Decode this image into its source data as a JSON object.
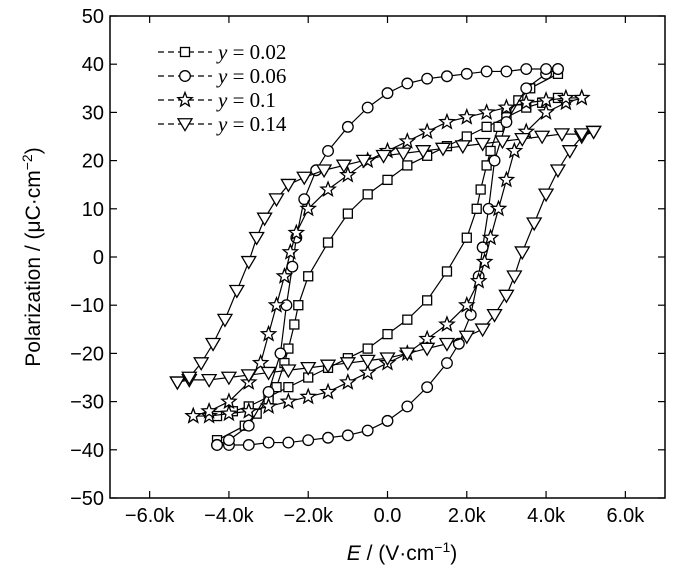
{
  "chart_data": {
    "type": "line",
    "title": "",
    "xlabel": "E / (V·cm⁻¹)",
    "ylabel": "Polarization / (μC·cm⁻²)",
    "xlabel_parts": {
      "var": "E",
      "rest": " / (V·cm",
      "sup": "−1",
      "close": ")"
    },
    "ylabel_parts": {
      "main": "Polarization / (μC·cm",
      "sup": "−2",
      "close": ")"
    },
    "xlim": [
      -7000,
      7000
    ],
    "ylim": [
      -50,
      50
    ],
    "xticks": [
      -6000,
      -4000,
      -2000,
      0,
      2000,
      4000,
      6000
    ],
    "xtick_labels": [
      "−6.0k",
      "−4.0k",
      "−2.0k",
      "0.0",
      "2.0k",
      "4.0k",
      "6.0k"
    ],
    "yticks": [
      -50,
      -40,
      -30,
      -20,
      -10,
      0,
      10,
      20,
      30,
      40,
      50
    ],
    "ytick_labels": [
      "−50",
      "−40",
      "−30",
      "−20",
      "−10",
      "0",
      "10",
      "20",
      "30",
      "40",
      "50"
    ],
    "grid": false,
    "legend_position": "top-left",
    "series": [
      {
        "name": "y = 0.02",
        "legend_var": "y",
        "legend_value": " = 0.02",
        "marker": "square",
        "upper_x": [
          4300,
          3600,
          3300,
          3000,
          2800,
          2600,
          2500,
          2350,
          2250,
          2000,
          1500,
          1000,
          500,
          0,
          -500,
          -1000,
          -1500,
          -2000,
          -2500,
          -3000,
          -3500,
          -3900,
          -4300
        ],
        "upper_y": [
          38,
          35,
          32.5,
          29.5,
          27,
          22,
          19,
          14,
          10,
          4,
          -3,
          -9,
          -13,
          -16,
          -19,
          -21,
          -23,
          -25,
          -27,
          -29,
          -31,
          -32,
          -33
        ],
        "lower_x": [
          -4300,
          -3600,
          -3300,
          -3000,
          -2800,
          -2600,
          -2500,
          -2350,
          -2250,
          -2000,
          -1500,
          -1000,
          -500,
          0,
          500,
          1000,
          1500,
          2000,
          2500,
          3000,
          3500,
          3900,
          4300
        ],
        "lower_y": [
          -38,
          -35,
          -32.5,
          -29.5,
          -27,
          -22,
          -19,
          -14,
          -10,
          -4,
          3,
          9,
          13,
          16,
          19,
          21,
          23,
          25,
          27,
          29,
          31,
          32,
          33
        ],
        "marker_interval": 1
      },
      {
        "name": "y = 0.06",
        "legend_var": "y",
        "legend_value": " = 0.06",
        "marker": "circle",
        "upper_x": [
          4300,
          4000,
          3500,
          3000,
          2700,
          2550,
          2400,
          2300,
          2100,
          1800,
          1500,
          1000,
          500,
          0,
          -500,
          -1000,
          -1500,
          -2000,
          -2500,
          -3000,
          -3500,
          -4000,
          -4300
        ],
        "upper_y": [
          39,
          38,
          35,
          28,
          20,
          10,
          2,
          -4,
          -12,
          -18,
          -22,
          -27,
          -31,
          -34,
          -36,
          -37,
          -37.5,
          -38,
          -38.5,
          -38.5,
          -39,
          -39,
          -39
        ],
        "lower_x": [
          -4300,
          -4000,
          -3500,
          -3000,
          -2700,
          -2550,
          -2400,
          -2300,
          -2100,
          -1800,
          -1500,
          -1000,
          -500,
          0,
          500,
          1000,
          1500,
          2000,
          2500,
          3000,
          3500,
          4000,
          4300
        ],
        "lower_y": [
          -39,
          -38,
          -35,
          -28,
          -20,
          -10,
          -2,
          4,
          12,
          18,
          22,
          27,
          31,
          34,
          36,
          37,
          37.5,
          38,
          38.5,
          38.5,
          39,
          39,
          39
        ],
        "marker_interval": 1
      },
      {
        "name": "y = 0.1",
        "legend_var": "y",
        "legend_value": " = 0.1",
        "marker": "star",
        "upper_x": [
          4900,
          4500,
          4000,
          3500,
          3200,
          3000,
          2800,
          2600,
          2450,
          2300,
          2000,
          1500,
          1000,
          500,
          0,
          -500,
          -1000,
          -1500,
          -2000,
          -2500,
          -3000,
          -3500,
          -4000,
          -4500,
          -4900
        ],
        "upper_y": [
          33,
          32,
          30,
          26,
          22,
          16,
          10,
          4,
          -1,
          -5,
          -10,
          -14,
          -17,
          -20,
          -22,
          -24,
          -26,
          -28,
          -29,
          -30,
          -31,
          -32,
          -32.5,
          -33,
          -33
        ],
        "lower_x": [
          -4900,
          -4500,
          -4000,
          -3500,
          -3200,
          -3000,
          -2800,
          -2600,
          -2450,
          -2300,
          -2000,
          -1500,
          -1000,
          -500,
          0,
          500,
          1000,
          1500,
          2000,
          2500,
          3000,
          3500,
          4000,
          4500,
          4900
        ],
        "lower_y": [
          -33,
          -32,
          -30,
          -26,
          -22,
          -16,
          -10,
          -4,
          1,
          5,
          10,
          14,
          17,
          20,
          22,
          24,
          26,
          28,
          29,
          30,
          31,
          32,
          32.5,
          33,
          33
        ],
        "marker_interval": 1
      },
      {
        "name": "y = 0.14",
        "legend_var": "y",
        "legend_value": " = 0.14",
        "marker": "triangle-down",
        "upper_x": [
          5200,
          4900,
          4600,
          4300,
          4000,
          3700,
          3400,
          3200,
          3000,
          2700,
          2400,
          2000,
          1500,
          1000,
          500,
          0,
          -500,
          -1000,
          -1500,
          -2000,
          -2500,
          -3000,
          -3500,
          -4000,
          -4500,
          -5000,
          -5300
        ],
        "upper_y": [
          26,
          25,
          22,
          18,
          13,
          7,
          1,
          -4,
          -8,
          -12,
          -15,
          -16.5,
          -18,
          -19,
          -20,
          -21,
          -21.5,
          -22,
          -22.5,
          -23,
          -23.5,
          -24,
          -24.5,
          -25,
          -25.5,
          -25.5,
          -26
        ],
        "lower_x": [
          -5300,
          -5000,
          -4700,
          -4400,
          -4100,
          -3800,
          -3500,
          -3300,
          -3100,
          -2800,
          -2500,
          -2100,
          -1600,
          -1100,
          -600,
          -100,
          400,
          900,
          1400,
          1900,
          2400,
          2900,
          3400,
          3900,
          4400,
          4900,
          5200
        ],
        "lower_y": [
          -26,
          -25,
          -22,
          -18,
          -13,
          -7,
          -1,
          4,
          8,
          12,
          15,
          16.5,
          18,
          19,
          20,
          21,
          21.5,
          22,
          22.5,
          23,
          23.5,
          24,
          24.5,
          25,
          25.5,
          25.5,
          26
        ],
        "marker_interval": 1
      }
    ]
  }
}
